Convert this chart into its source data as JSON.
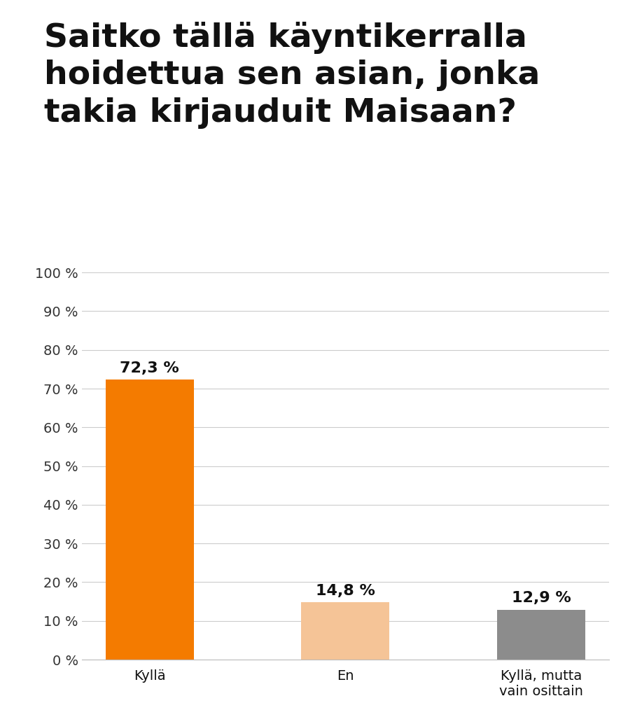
{
  "title": "Saitko tällä käyntikerralla\nhoidettua sen asian, jonka\ntakia kirjauduit Maisaan?",
  "categories": [
    "Kyllä",
    "En",
    "Kyllä, mutta\nvain osittain"
  ],
  "values": [
    72.3,
    14.8,
    12.9
  ],
  "labels": [
    "72,3 %",
    "14,8 %",
    "12,9 %"
  ],
  "bar_colors": [
    "#F47B00",
    "#F5C497",
    "#8C8C8C"
  ],
  "ylim": [
    0,
    100
  ],
  "yticks": [
    0,
    10,
    20,
    30,
    40,
    50,
    60,
    70,
    80,
    90,
    100
  ],
  "ytick_labels": [
    "0 %",
    "10 %",
    "20 %",
    "30 %",
    "40 %",
    "50 %",
    "60 %",
    "70 %",
    "80 %",
    "90 %",
    "100 %"
  ],
  "background_color": "#ffffff",
  "title_fontsize": 34,
  "tick_fontsize": 14,
  "bar_label_fontsize": 16
}
